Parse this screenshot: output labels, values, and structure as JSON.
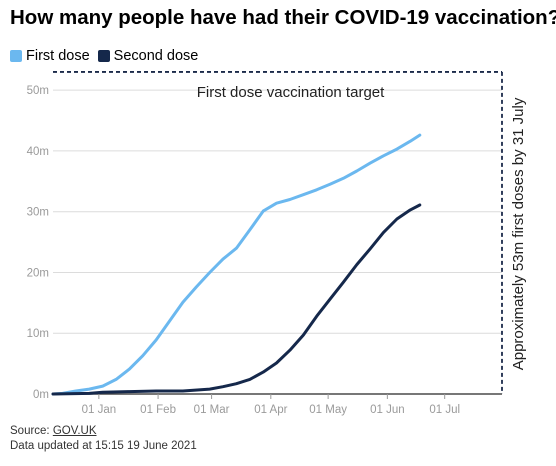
{
  "title": "How many people have had their COVID-19 vaccination?",
  "legend": [
    {
      "label": "First dose",
      "color": "#6bb8ef"
    },
    {
      "label": "Second dose",
      "color": "#15284b"
    }
  ],
  "footer": {
    "source_prefix": "Source: ",
    "source_link": "GOV.UK",
    "updated": "Data updated at 15:15 19 June 2021"
  },
  "chart_data": {
    "type": "line",
    "ylim": [
      0,
      52
    ],
    "xlim": [
      "2020-12-08",
      "2021-07-31"
    ],
    "yticks": [
      {
        "value": 0,
        "label": "0m"
      },
      {
        "value": 10,
        "label": "10m"
      },
      {
        "value": 20,
        "label": "20m"
      },
      {
        "value": 30,
        "label": "30m"
      },
      {
        "value": 40,
        "label": "40m"
      },
      {
        "value": 50,
        "label": "50m"
      }
    ],
    "xticks": [
      {
        "date": "2021-01-01",
        "label": "01 Jan"
      },
      {
        "date": "2021-02-01",
        "label": "01 Feb"
      },
      {
        "date": "2021-03-01",
        "label": "01 Mar"
      },
      {
        "date": "2021-04-01",
        "label": "01 Apr"
      },
      {
        "date": "2021-05-01",
        "label": "01 May"
      },
      {
        "date": "2021-06-01",
        "label": "01 Jun"
      },
      {
        "date": "2021-07-01",
        "label": "01 Jul"
      }
    ],
    "target": {
      "value": 53,
      "label": "First dose vaccination target"
    },
    "deadline": {
      "date": "2021-07-31",
      "label": "Approximately 53m first doses by 31 July"
    },
    "series": [
      {
        "name": "First dose",
        "color": "#6bb8ef",
        "points": [
          [
            "2020-12-08",
            0
          ],
          [
            "2020-12-13",
            0.1
          ],
          [
            "2020-12-20",
            0.5
          ],
          [
            "2020-12-27",
            0.8
          ],
          [
            "2021-01-03",
            1.3
          ],
          [
            "2021-01-10",
            2.4
          ],
          [
            "2021-01-17",
            4.1
          ],
          [
            "2021-01-24",
            6.3
          ],
          [
            "2021-01-31",
            8.9
          ],
          [
            "2021-02-07",
            12.0
          ],
          [
            "2021-02-14",
            15.1
          ],
          [
            "2021-02-21",
            17.6
          ],
          [
            "2021-02-28",
            20.0
          ],
          [
            "2021-03-07",
            22.2
          ],
          [
            "2021-03-14",
            24.0
          ],
          [
            "2021-03-21",
            27.0
          ],
          [
            "2021-03-28",
            30.1
          ],
          [
            "2021-04-04",
            31.4
          ],
          [
            "2021-04-11",
            32.0
          ],
          [
            "2021-04-18",
            32.8
          ],
          [
            "2021-04-25",
            33.6
          ],
          [
            "2021-05-02",
            34.5
          ],
          [
            "2021-05-09",
            35.5
          ],
          [
            "2021-05-16",
            36.7
          ],
          [
            "2021-05-23",
            38.0
          ],
          [
            "2021-05-30",
            39.2
          ],
          [
            "2021-06-06",
            40.3
          ],
          [
            "2021-06-13",
            41.6
          ],
          [
            "2021-06-18",
            42.6
          ]
        ]
      },
      {
        "name": "Second dose",
        "color": "#15284b",
        "points": [
          [
            "2020-12-08",
            0
          ],
          [
            "2020-12-27",
            0.1
          ],
          [
            "2021-01-03",
            0.3
          ],
          [
            "2021-01-17",
            0.4
          ],
          [
            "2021-01-31",
            0.5
          ],
          [
            "2021-02-14",
            0.5
          ],
          [
            "2021-02-28",
            0.8
          ],
          [
            "2021-03-07",
            1.2
          ],
          [
            "2021-03-14",
            1.7
          ],
          [
            "2021-03-21",
            2.4
          ],
          [
            "2021-03-28",
            3.6
          ],
          [
            "2021-04-04",
            5.1
          ],
          [
            "2021-04-11",
            7.2
          ],
          [
            "2021-04-18",
            9.7
          ],
          [
            "2021-04-25",
            12.8
          ],
          [
            "2021-05-02",
            15.6
          ],
          [
            "2021-05-09",
            18.4
          ],
          [
            "2021-05-16",
            21.3
          ],
          [
            "2021-05-23",
            23.9
          ],
          [
            "2021-05-30",
            26.6
          ],
          [
            "2021-06-06",
            28.8
          ],
          [
            "2021-06-13",
            30.3
          ],
          [
            "2021-06-18",
            31.1
          ]
        ]
      }
    ]
  }
}
